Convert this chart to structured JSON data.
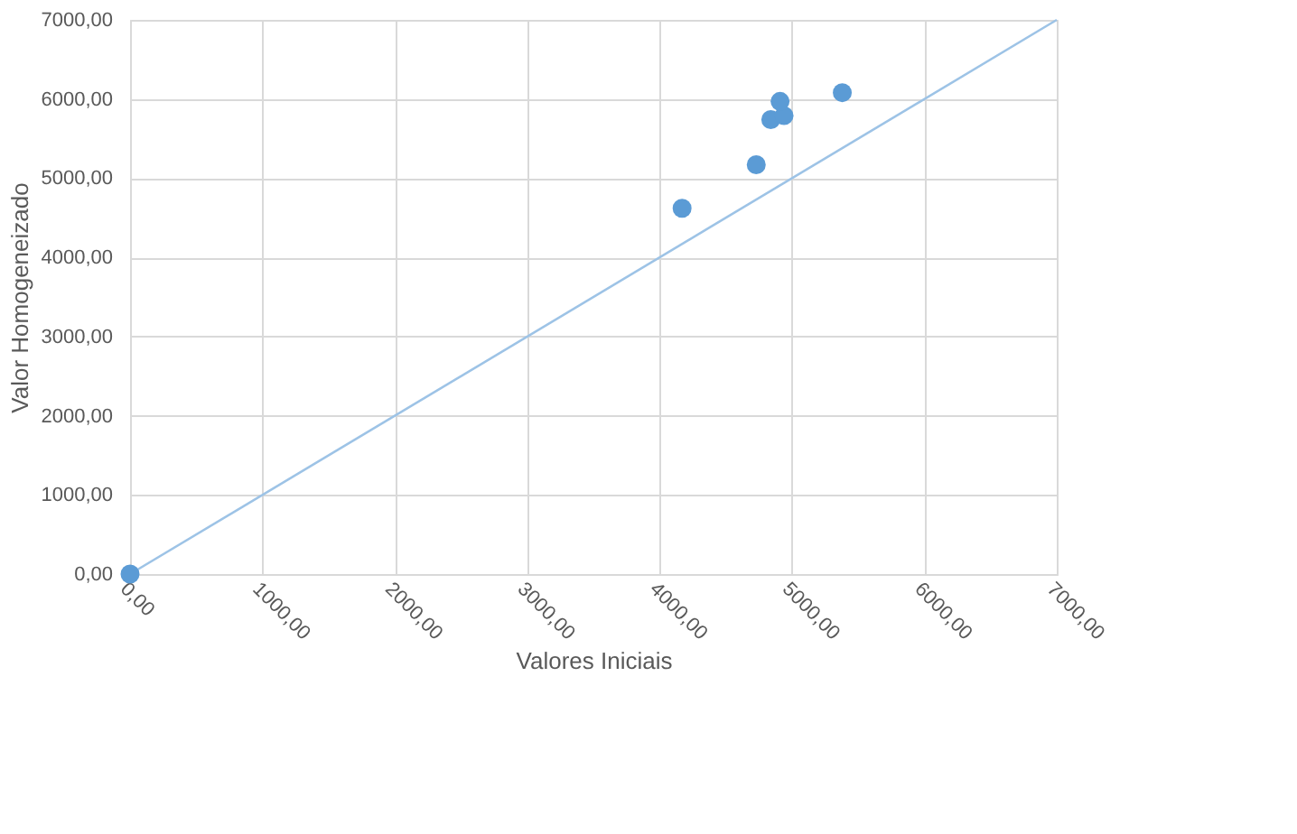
{
  "chart_data": {
    "type": "scatter",
    "xlabel": "Valores Iniciais",
    "ylabel": "Valor Homogeneizado",
    "xlim": [
      0,
      7000
    ],
    "ylim": [
      0,
      7000
    ],
    "xticks": [
      {
        "value": 0,
        "label": "0,00"
      },
      {
        "value": 1000,
        "label": "1000,00"
      },
      {
        "value": 2000,
        "label": "2000,00"
      },
      {
        "value": 3000,
        "label": "3000,00"
      },
      {
        "value": 4000,
        "label": "4000,00"
      },
      {
        "value": 5000,
        "label": "5000,00"
      },
      {
        "value": 6000,
        "label": "6000,00"
      },
      {
        "value": 7000,
        "label": "7000,00"
      }
    ],
    "yticks": [
      {
        "value": 0,
        "label": "0,00"
      },
      {
        "value": 1000,
        "label": "1000,00"
      },
      {
        "value": 2000,
        "label": "2000,00"
      },
      {
        "value": 3000,
        "label": "3000,00"
      },
      {
        "value": 4000,
        "label": "4000,00"
      },
      {
        "value": 5000,
        "label": "5000,00"
      },
      {
        "value": 6000,
        "label": "6000,00"
      },
      {
        "value": 7000,
        "label": "7000,00"
      }
    ],
    "grid": true,
    "marker": "circle",
    "series": [
      {
        "color": "#5b9bd5",
        "x": [
          0,
          4170,
          4730,
          4840,
          4940,
          4910,
          5380
        ],
        "values": [
          0,
          4620,
          5170,
          5740,
          5790,
          5970,
          6080
        ]
      },
      {
        "type": "line",
        "color": "#9dc3e6",
        "marker": "none",
        "x": [
          0,
          7000
        ],
        "values": [
          0,
          7000
        ]
      }
    ]
  }
}
